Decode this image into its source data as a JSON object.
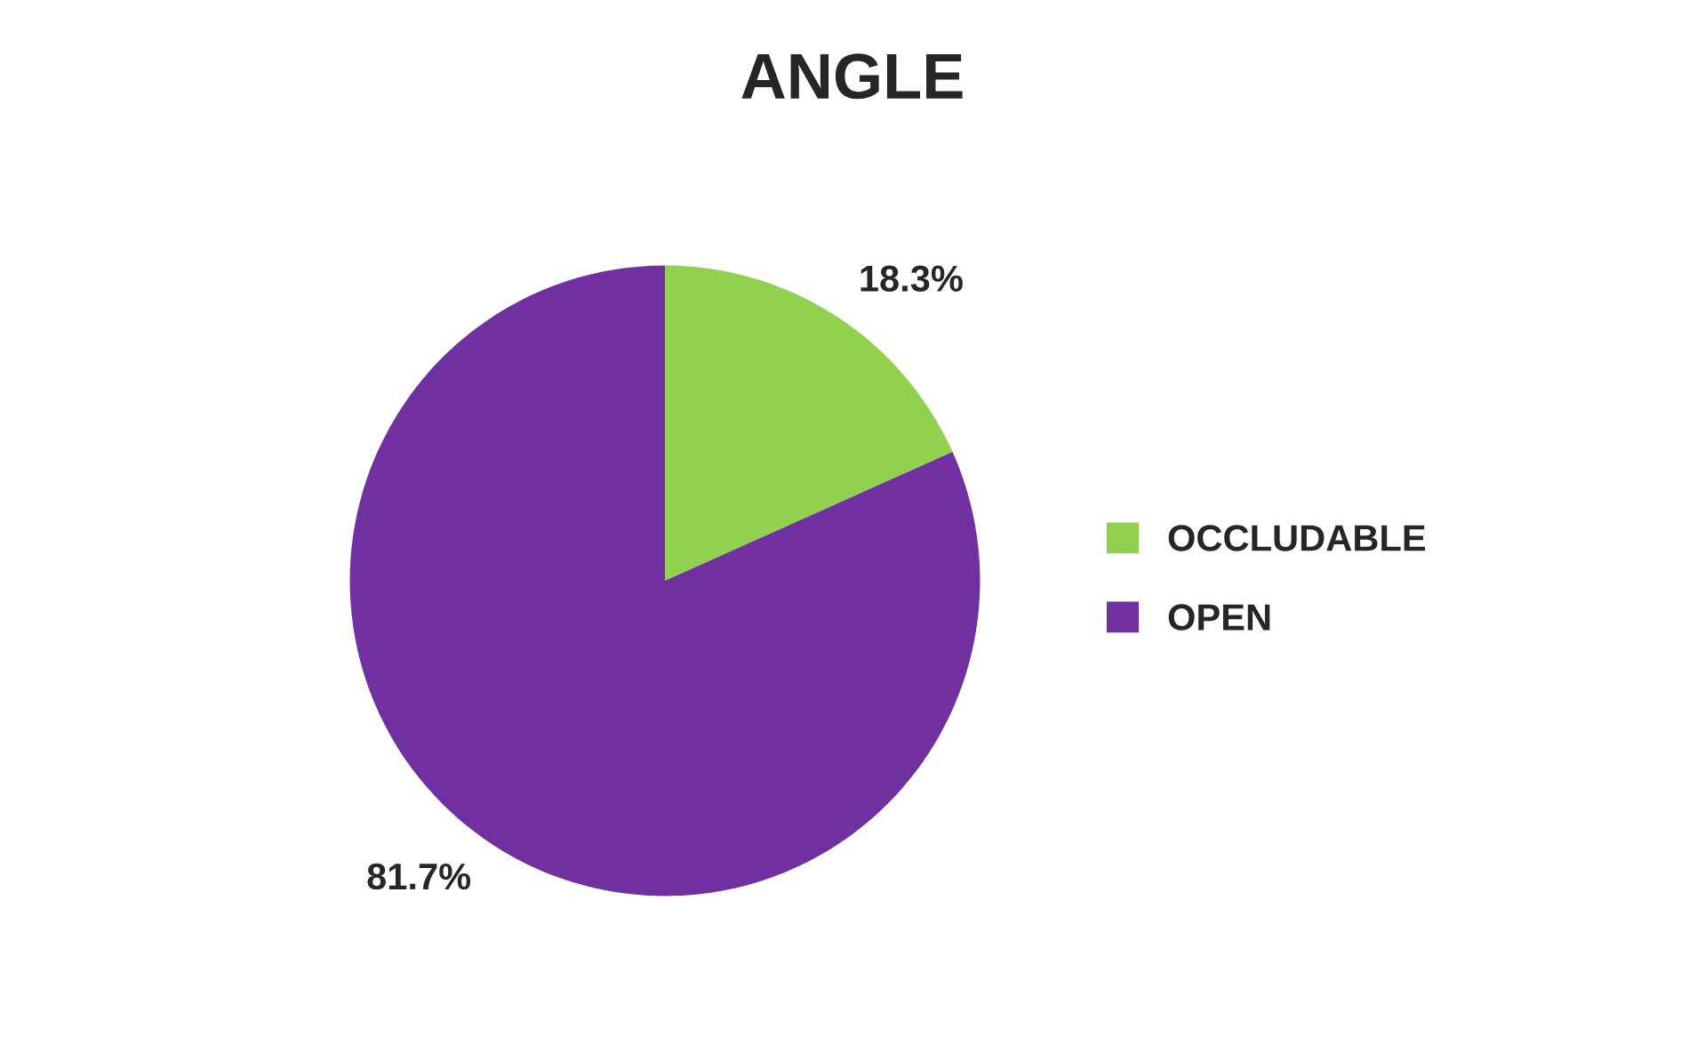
{
  "chart_data": {
    "type": "pie",
    "title": "ANGLE",
    "categories": [
      "OCCLUDABLE",
      "OPEN"
    ],
    "values": [
      18.3,
      81.7
    ],
    "colors": [
      "#92d050",
      "#7030a0"
    ],
    "value_labels": [
      "18.3%",
      "81.7%"
    ],
    "legend": "right"
  }
}
